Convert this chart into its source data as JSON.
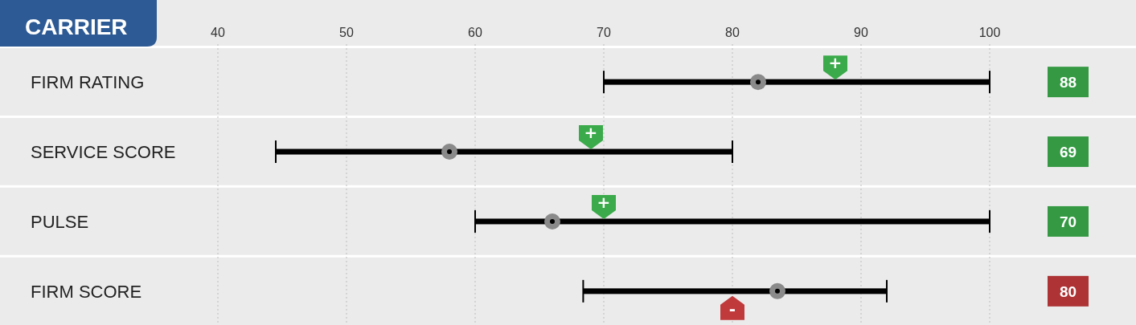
{
  "chart_data": {
    "type": "bar",
    "orientation": "horizontal",
    "title": "CARRIER",
    "categories": [
      "FIRM RATING",
      "SERVICE SCORE",
      "PULSE",
      "FIRM SCORE"
    ],
    "series": [
      {
        "base": [
          70,
          44.5,
          60,
          68.4
        ],
        "values": [
          30,
          35.5,
          40,
          23.6
        ],
        "color": "#000000"
      },
      {
        "type": "scatter",
        "values": [
          82,
          58,
          66,
          83.5
        ],
        "color": "#8a8a8a",
        "marker": "circle"
      },
      {
        "type": "scatter",
        "values": [
          88,
          69,
          70,
          80
        ],
        "colors": [
          "#3aaa4a",
          "#3aaa4a",
          "#3aaa4a",
          "#c0393b"
        ],
        "value_labels": [
          "88",
          "69",
          "70",
          "80"
        ]
      }
    ],
    "annotations": [
      "+",
      "+",
      "+",
      "-"
    ],
    "xlim": [
      40,
      100
    ],
    "xticks": [
      40,
      50,
      60,
      70,
      80,
      90,
      100
    ],
    "grid": "x"
  }
}
